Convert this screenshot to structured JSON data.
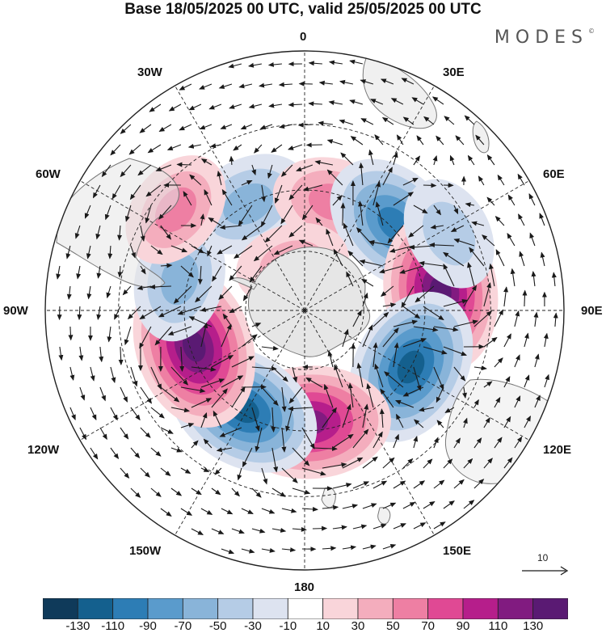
{
  "title": "Base 18/05/2025 00 UTC, valid 25/05/2025 00 UTC",
  "brand": "MODES",
  "brand_mark": "©",
  "longitude_labels": {
    "n": "0",
    "e30": "30E",
    "e60": "60E",
    "e90": "90E",
    "e120": "120E",
    "e150": "150E",
    "s": "180",
    "w150": "150W",
    "w120": "120W",
    "w90": "90W",
    "w60": "60W",
    "w30": "30W"
  },
  "vector_reference": {
    "label": "10"
  },
  "colorbar": {
    "ticks": [
      "-130",
      "-110",
      "-90",
      "-70",
      "-50",
      "-30",
      "-10",
      "10",
      "30",
      "50",
      "70",
      "90",
      "110",
      "130"
    ],
    "colors": [
      "#0f3a5a",
      "#14608e",
      "#2d7db5",
      "#5a9bcc",
      "#89b4d9",
      "#b5cce6",
      "#dde3f0",
      "#ffffff",
      "#f9d5da",
      "#f4adbd",
      "#ee7fa3",
      "#e04994",
      "#b61e8b",
      "#811b80",
      "#5a1a73"
    ]
  },
  "colors": {
    "land": "#e6e6e6",
    "coast": "#777777",
    "grid": "#222222",
    "arrow": "#1a1a1a"
  },
  "anomaly_centers": [
    {
      "lon": -28,
      "colat": 30,
      "value": -55
    },
    {
      "lon": 15,
      "colat": 28,
      "value": 45
    },
    {
      "lon": 46,
      "colat": 31,
      "value": -95
    },
    {
      "lon": 82,
      "colat": 34,
      "value": 120
    },
    {
      "lon": 118,
      "colat": 30,
      "value": -115
    },
    {
      "lon": 177,
      "colat": 28,
      "value": 118
    },
    {
      "lon": -148,
      "colat": 29,
      "value": -115
    },
    {
      "lon": -108,
      "colat": 29,
      "value": 128
    },
    {
      "lon": -76,
      "colat": 32,
      "value": -50
    },
    {
      "lon": -52,
      "colat": 40,
      "value": 40
    },
    {
      "lon": -15,
      "colat": 12,
      "value": 28
    },
    {
      "lon": 62,
      "colat": 40,
      "value": -30
    }
  ]
}
